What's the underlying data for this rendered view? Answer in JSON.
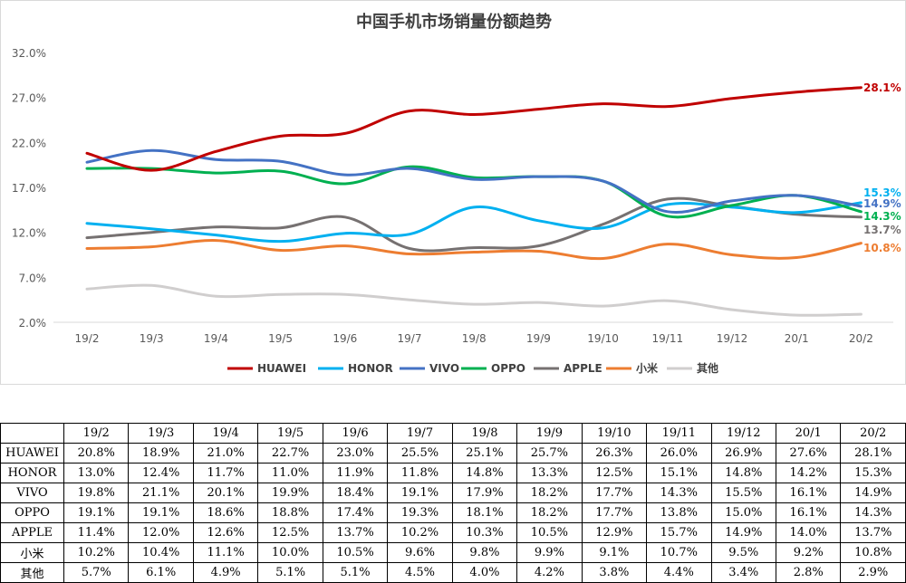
{
  "chart_data": {
    "type": "line",
    "title": "中国手机市场销量份额趋势",
    "categories": [
      "19/2",
      "19/3",
      "19/4",
      "19/5",
      "19/6",
      "19/7",
      "19/8",
      "19/9",
      "19/10",
      "19/11",
      "19/12",
      "20/1",
      "20/2"
    ],
    "y_ticks": [
      "2.0%",
      "7.0%",
      "12.0%",
      "17.0%",
      "22.0%",
      "27.0%",
      "32.0%"
    ],
    "ylim": [
      2,
      32
    ],
    "grid": false,
    "legend_position": "bottom",
    "series": [
      {
        "name": "HUAWEI",
        "color": "#c00000",
        "values": [
          20.8,
          18.9,
          21.0,
          22.7,
          23.0,
          25.5,
          25.1,
          25.7,
          26.3,
          26.0,
          26.9,
          27.6,
          28.1
        ],
        "end_label": "28.1%"
      },
      {
        "name": "HONOR",
        "color": "#00b0f0",
        "values": [
          13.0,
          12.4,
          11.7,
          11.0,
          11.9,
          11.8,
          14.8,
          13.3,
          12.5,
          15.1,
          14.8,
          14.2,
          15.3
        ],
        "end_label": "15.3%"
      },
      {
        "name": "VIVO",
        "color": "#4472c4",
        "values": [
          19.8,
          21.1,
          20.1,
          19.9,
          18.4,
          19.1,
          17.9,
          18.2,
          17.7,
          14.3,
          15.5,
          16.1,
          14.9
        ],
        "end_label": "14.9%"
      },
      {
        "name": "OPPO",
        "color": "#00b050",
        "values": [
          19.1,
          19.1,
          18.6,
          18.8,
          17.4,
          19.3,
          18.1,
          18.2,
          17.7,
          13.8,
          15.0,
          16.1,
          14.3
        ],
        "end_label": "14.3%"
      },
      {
        "name": "APPLE",
        "color": "#767171",
        "values": [
          11.4,
          12.0,
          12.6,
          12.5,
          13.7,
          10.2,
          10.3,
          10.5,
          12.9,
          15.7,
          14.9,
          14.0,
          13.7
        ],
        "end_label": "13.7%"
      },
      {
        "name": "小米",
        "color": "#ed7d31",
        "values": [
          10.2,
          10.4,
          11.1,
          10.0,
          10.5,
          9.6,
          9.8,
          9.9,
          9.1,
          10.7,
          9.5,
          9.2,
          10.8
        ],
        "end_label": "10.8%"
      },
      {
        "name": "其他",
        "color": "#d0cece",
        "values": [
          5.7,
          6.1,
          4.9,
          5.1,
          5.1,
          4.5,
          4.0,
          4.2,
          3.8,
          4.4,
          3.4,
          2.8,
          2.9
        ]
      }
    ],
    "table": {
      "rows": [
        {
          "label": "HUAWEI",
          "cells": [
            "20.8%",
            "18.9%",
            "21.0%",
            "22.7%",
            "23.0%",
            "25.5%",
            "25.1%",
            "25.7%",
            "26.3%",
            "26.0%",
            "26.9%",
            "27.6%",
            "28.1%"
          ]
        },
        {
          "label": "HONOR",
          "cells": [
            "13.0%",
            "12.4%",
            "11.7%",
            "11.0%",
            "11.9%",
            "11.8%",
            "14.8%",
            "13.3%",
            "12.5%",
            "15.1%",
            "14.8%",
            "14.2%",
            "15.3%"
          ]
        },
        {
          "label": "VIVO",
          "cells": [
            "19.8%",
            "21.1%",
            "20.1%",
            "19.9%",
            "18.4%",
            "19.1%",
            "17.9%",
            "18.2%",
            "17.7%",
            "14.3%",
            "15.5%",
            "16.1%",
            "14.9%"
          ]
        },
        {
          "label": "OPPO",
          "cells": [
            "19.1%",
            "19.1%",
            "18.6%",
            "18.8%",
            "17.4%",
            "19.3%",
            "18.1%",
            "18.2%",
            "17.7%",
            "13.8%",
            "15.0%",
            "16.1%",
            "14.3%"
          ]
        },
        {
          "label": "APPLE",
          "cells": [
            "11.4%",
            "12.0%",
            "12.6%",
            "12.5%",
            "13.7%",
            "10.2%",
            "10.3%",
            "10.5%",
            "12.9%",
            "15.7%",
            "14.9%",
            "14.0%",
            "13.7%"
          ]
        },
        {
          "label": "小米",
          "cells": [
            "10.2%",
            "10.4%",
            "11.1%",
            "10.0%",
            "10.5%",
            "9.6%",
            "9.8%",
            "9.9%",
            "9.1%",
            "10.7%",
            "9.5%",
            "9.2%",
            "10.8%"
          ]
        },
        {
          "label": "其他",
          "cells": [
            "5.7%",
            "6.1%",
            "4.9%",
            "5.1%",
            "5.1%",
            "4.5%",
            "4.0%",
            "4.2%",
            "3.8%",
            "4.4%",
            "3.4%",
            "2.8%",
            "2.9%"
          ]
        }
      ]
    }
  }
}
